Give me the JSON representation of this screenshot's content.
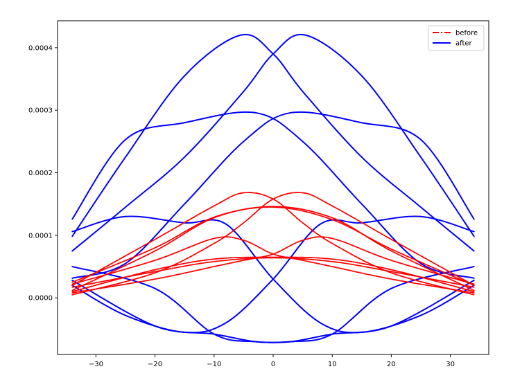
{
  "chart_data": {
    "type": "line",
    "title": "",
    "xlabel": "",
    "ylabel": "",
    "xlim": [
      -36.5,
      36.5
    ],
    "ylim": [
      -9.05e-05,
      0.000443
    ],
    "x_ticks": [
      -30,
      -20,
      -10,
      0,
      10,
      20,
      30
    ],
    "x_tick_labels": [
      "−30",
      "−20",
      "−10",
      "0",
      "10",
      "20",
      "30"
    ],
    "y_ticks": [
      0.0,
      0.0001,
      0.0002,
      0.0003,
      0.0004
    ],
    "y_tick_labels": [
      "0.0000",
      "0.0001",
      "0.0002",
      "0.0003",
      "0.0004"
    ],
    "grid": false,
    "legend_position": "top-right",
    "legend": [
      {
        "label": "before",
        "color": "#ff0000",
        "style": "dashdot"
      },
      {
        "label": "after",
        "color": "#0000ff",
        "style": "solid"
      }
    ],
    "series": [
      {
        "group": "before",
        "color": "#ff0000",
        "x": [
          -34,
          -20,
          -10,
          -5,
          0,
          5,
          10,
          20,
          34
        ],
        "y": [
          2e-05,
          9.35e-05,
          0.000147,
          0.000168,
          0.000158,
          0.00012,
          8.7e-05,
          4e-05,
          5e-06
        ]
      },
      {
        "group": "before",
        "color": "#ff0000",
        "x": [
          -34,
          -20,
          -10,
          -5,
          0,
          5,
          10,
          20,
          34
        ],
        "y": [
          5e-06,
          4e-05,
          8.7e-05,
          0.00012,
          0.000158,
          0.000168,
          0.000147,
          9.35e-05,
          2e-05
        ]
      },
      {
        "group": "before",
        "color": "#ff0000",
        "x": [
          -34,
          -20,
          -10,
          0,
          10,
          20,
          34
        ],
        "y": [
          1.2e-05,
          7.5e-05,
          0.000128,
          0.000146,
          0.000128,
          7.5e-05,
          1.2e-05
        ]
      },
      {
        "group": "before",
        "color": "#ff0000",
        "x": [
          -34,
          -20,
          -10,
          0,
          10,
          20,
          34
        ],
        "y": [
          2.5e-05,
          8e-05,
          0.000129,
          0.000145,
          0.000125,
          7.8e-05,
          2e-05
        ]
      },
      {
        "group": "before",
        "color": "#ff0000",
        "x": [
          -34,
          -20,
          -10,
          -5,
          0,
          5,
          10,
          20,
          34
        ],
        "y": [
          2.2e-05,
          6e-05,
          9.5e-05,
          9.2e-05,
          7e-05,
          6e-05,
          5e-05,
          3e-05,
          8e-06
        ]
      },
      {
        "group": "before",
        "color": "#ff0000",
        "x": [
          -34,
          -20,
          -10,
          -5,
          0,
          5,
          10,
          20,
          34
        ],
        "y": [
          8e-06,
          3e-05,
          5e-05,
          6e-05,
          7e-05,
          9.2e-05,
          9.5e-05,
          6e-05,
          2.2e-05
        ]
      },
      {
        "group": "before",
        "color": "#ff0000",
        "x": [
          -34,
          -20,
          -10,
          0,
          10,
          20,
          34
        ],
        "y": [
          1e-05,
          4.5e-05,
          6.2e-05,
          6.5e-05,
          6.2e-05,
          4.5e-05,
          1e-05
        ]
      },
      {
        "group": "before",
        "color": "#ff0000",
        "x": [
          -34,
          -20,
          -10,
          0,
          10,
          20,
          34
        ],
        "y": [
          1.7e-05,
          4.2e-05,
          5.8e-05,
          6.4e-05,
          5.8e-05,
          4.2e-05,
          1.7e-05
        ]
      },
      {
        "group": "after",
        "color": "#0000ff",
        "x": [
          -34,
          -25,
          -15,
          -5.5,
          0,
          5,
          15,
          25,
          34
        ],
        "y": [
          9.85e-05,
          0.000225,
          0.000355,
          0.00042,
          0.00039,
          0.00033,
          0.000225,
          0.000145,
          7.5e-05
        ]
      },
      {
        "group": "after",
        "color": "#0000ff",
        "x": [
          -34,
          -25,
          -15,
          -5,
          0,
          5.5,
          15,
          25,
          34
        ],
        "y": [
          7.5e-05,
          0.000145,
          0.000225,
          0.00033,
          0.00039,
          0.00042,
          0.000355,
          0.000225,
          9.85e-05
        ]
      },
      {
        "group": "after",
        "color": "#0000ff",
        "x": [
          -34,
          -25,
          -15,
          -3,
          5,
          15,
          25,
          34
        ],
        "y": [
          0.000126,
          0.000253,
          0.00028,
          0.000296,
          0.00025,
          0.00015,
          5.5e-05,
          3.15e-05
        ]
      },
      {
        "group": "after",
        "color": "#0000ff",
        "x": [
          -34,
          -25,
          -15,
          -5,
          3,
          15,
          25,
          34
        ],
        "y": [
          3.15e-05,
          5.5e-05,
          0.00015,
          0.00025,
          0.000296,
          0.00028,
          0.000253,
          0.000126
        ]
      },
      {
        "group": "after",
        "color": "#0000ff",
        "x": [
          -34,
          -25,
          -15,
          -8,
          0,
          8,
          15,
          25,
          34
        ],
        "y": [
          0.000106,
          0.00013,
          0.00012,
          0.000118,
          3e-05,
          -4e-05,
          -5.5e-05,
          -2.8e-05,
          2e-05
        ]
      },
      {
        "group": "after",
        "color": "#0000ff",
        "x": [
          -34,
          -25,
          -15,
          -8,
          0,
          8,
          15,
          25,
          34
        ],
        "y": [
          2e-05,
          -2.8e-05,
          -5.5e-05,
          -4e-05,
          3e-05,
          0.000118,
          0.00012,
          0.00013,
          0.000106
        ]
      },
      {
        "group": "after",
        "color": "#0000ff",
        "x": [
          -34,
          -20,
          -10,
          -3,
          3,
          10,
          20,
          34
        ],
        "y": [
          5e-05,
          1.5e-05,
          -5.8e-05,
          -7e-05,
          -7e-05,
          -5.8e-05,
          -4.5e-05,
          2.8e-05
        ]
      },
      {
        "group": "after",
        "color": "#0000ff",
        "x": [
          -34,
          -20,
          -10,
          -3,
          3,
          10,
          20,
          34
        ],
        "y": [
          2.8e-05,
          -4.5e-05,
          -5.8e-05,
          -7e-05,
          -7e-05,
          -5.8e-05,
          1.5e-05,
          5e-05
        ]
      }
    ]
  }
}
